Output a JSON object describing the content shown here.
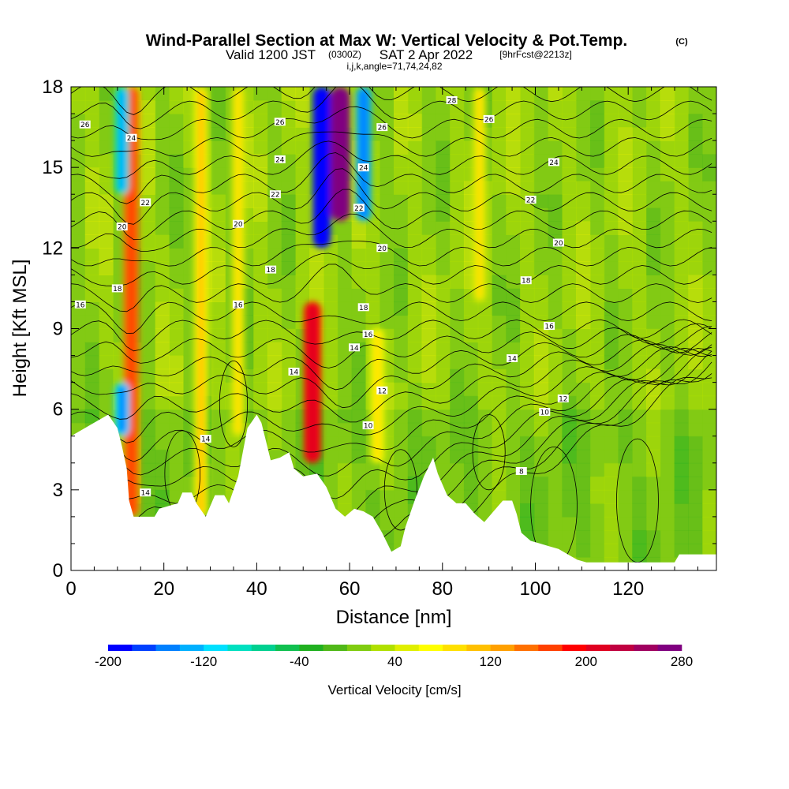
{
  "title": {
    "main": "Wind-Parallel Section at Max W: Vertical Velocity & Pot.Temp.",
    "copyright": "(C)",
    "valid_prefix": "Valid 1200 JST",
    "valid_utc": "(0300Z)",
    "valid_date": "SAT 2 Apr 2022",
    "forecast": "[9hrFcst@2213z]",
    "indices": "i,j,k,angle=71,74,24,82"
  },
  "chart_data": {
    "type": "heatmap",
    "xlabel": "Distance [nm]",
    "ylabel": "Height [Kft MSL]",
    "xlim": [
      0,
      139
    ],
    "ylim": [
      0,
      18
    ],
    "x_ticks": [
      0,
      20,
      40,
      60,
      80,
      100,
      120
    ],
    "y_ticks": [
      0,
      3,
      6,
      9,
      12,
      15,
      18
    ],
    "colorbar": {
      "label": "Vertical Velocity [cm/s]",
      "min": -200,
      "max": 280,
      "step": 20,
      "tick_labels": [
        "-200",
        "-120",
        "-40",
        "40",
        "120",
        "200",
        "280"
      ],
      "colors": [
        "#0000ff",
        "#0040ff",
        "#0080ff",
        "#00b0ff",
        "#00e0ff",
        "#00e0c0",
        "#00d090",
        "#10c050",
        "#20b020",
        "#50b818",
        "#80cc10",
        "#b0e000",
        "#e0ef00",
        "#ffff00",
        "#ffe000",
        "#ffc000",
        "#ffa000",
        "#ff7000",
        "#ff4000",
        "#ff0000",
        "#e00020",
        "#c00040",
        "#a00060",
        "#800080"
      ]
    },
    "vertical_velocity_features": [
      {
        "x": 13,
        "z_min": 2.0,
        "z_max": 18,
        "value": 140
      },
      {
        "x": 11,
        "z_min": 5.0,
        "z_max": 7.0,
        "value": -120
      },
      {
        "x": 11,
        "z_min": 14.0,
        "z_max": 18,
        "value": -100
      },
      {
        "x": 28,
        "z_min": 2.0,
        "z_max": 18,
        "value": 70
      },
      {
        "x": 36,
        "z_min": 5.0,
        "z_max": 18,
        "value": 50
      },
      {
        "x": 52,
        "z_min": 4.0,
        "z_max": 10,
        "value": 180
      },
      {
        "x": 54,
        "z_min": 12.0,
        "z_max": 18,
        "value": -200
      },
      {
        "x": 58,
        "z_min": 13.0,
        "z_max": 18,
        "value": 260
      },
      {
        "x": 63,
        "z_min": 13.0,
        "z_max": 18,
        "value": -130
      },
      {
        "x": 66,
        "z_min": 4.0,
        "z_max": 9,
        "value": 60
      },
      {
        "x": 88,
        "z_min": 10.0,
        "z_max": 18,
        "value": 50
      }
    ],
    "terrain_kft": [
      [
        0,
        5.0
      ],
      [
        4,
        5.4
      ],
      [
        8,
        5.8
      ],
      [
        10,
        5.3
      ],
      [
        11,
        4.6
      ],
      [
        12,
        3.8
      ],
      [
        12.5,
        2.6
      ],
      [
        13.5,
        2.0
      ],
      [
        18,
        2.0
      ],
      [
        19,
        2.3
      ],
      [
        23,
        2.5
      ],
      [
        24,
        2.9
      ],
      [
        26,
        2.9
      ],
      [
        27,
        2.5
      ],
      [
        29,
        2.0
      ],
      [
        31,
        2.8
      ],
      [
        33,
        2.8
      ],
      [
        34,
        2.5
      ],
      [
        36,
        3.5
      ],
      [
        37,
        4.4
      ],
      [
        38,
        5.3
      ],
      [
        40,
        5.8
      ],
      [
        41,
        5.5
      ],
      [
        42,
        4.8
      ],
      [
        43,
        4.1
      ],
      [
        45,
        4.2
      ],
      [
        47,
        4.4
      ],
      [
        48,
        3.8
      ],
      [
        50,
        3.5
      ],
      [
        53,
        3.6
      ],
      [
        55,
        3.1
      ],
      [
        57,
        2.3
      ],
      [
        59,
        2.0
      ],
      [
        61,
        2.3
      ],
      [
        63,
        2.2
      ],
      [
        65,
        2.0
      ],
      [
        67,
        1.4
      ],
      [
        69,
        0.7
      ],
      [
        71,
        0.9
      ],
      [
        72,
        1.6
      ],
      [
        74,
        2.6
      ],
      [
        76,
        3.5
      ],
      [
        78,
        4.2
      ],
      [
        79,
        3.6
      ],
      [
        81,
        2.8
      ],
      [
        83,
        2.5
      ],
      [
        85,
        2.5
      ],
      [
        87,
        2.1
      ],
      [
        89,
        1.8
      ],
      [
        91,
        2.2
      ],
      [
        93,
        2.6
      ],
      [
        95,
        2.6
      ],
      [
        96,
        2.1
      ],
      [
        97,
        1.4
      ],
      [
        99,
        1.1
      ],
      [
        101,
        1.0
      ],
      [
        103,
        0.9
      ],
      [
        105,
        0.8
      ],
      [
        107,
        0.6
      ],
      [
        109,
        0.4
      ],
      [
        111,
        0.3
      ],
      [
        130,
        0.3
      ],
      [
        131,
        0.6
      ],
      [
        139,
        0.6
      ]
    ],
    "theta_contour_labels": [
      {
        "text": "26",
        "x": 3,
        "z": 16.6
      },
      {
        "text": "24",
        "x": 13,
        "z": 16.1
      },
      {
        "text": "22",
        "x": 16,
        "z": 13.7
      },
      {
        "text": "20",
        "x": 11,
        "z": 12.8
      },
      {
        "text": "18",
        "x": 10,
        "z": 10.5
      },
      {
        "text": "16",
        "x": 2,
        "z": 9.9
      },
      {
        "text": "14",
        "x": 16,
        "z": 2.9
      },
      {
        "text": "14",
        "x": 29,
        "z": 4.9
      },
      {
        "text": "20",
        "x": 36,
        "z": 12.9
      },
      {
        "text": "16",
        "x": 36,
        "z": 9.9
      },
      {
        "text": "18",
        "x": 43,
        "z": 11.2
      },
      {
        "text": "22",
        "x": 44,
        "z": 14.0
      },
      {
        "text": "24",
        "x": 45,
        "z": 15.3
      },
      {
        "text": "26",
        "x": 45,
        "z": 16.7
      },
      {
        "text": "14",
        "x": 48,
        "z": 7.4
      },
      {
        "text": "18",
        "x": 63,
        "z": 9.8
      },
      {
        "text": "16",
        "x": 64,
        "z": 8.8
      },
      {
        "text": "14",
        "x": 61,
        "z": 8.3
      },
      {
        "text": "12",
        "x": 67,
        "z": 6.7
      },
      {
        "text": "10",
        "x": 64,
        "z": 5.4
      },
      {
        "text": "22",
        "x": 62,
        "z": 13.5
      },
      {
        "text": "24",
        "x": 63,
        "z": 15.0
      },
      {
        "text": "20",
        "x": 67,
        "z": 12.0
      },
      {
        "text": "26",
        "x": 67,
        "z": 16.5
      },
      {
        "text": "28",
        "x": 82,
        "z": 17.5
      },
      {
        "text": "26",
        "x": 90,
        "z": 16.8
      },
      {
        "text": "24",
        "x": 104,
        "z": 15.2
      },
      {
        "text": "22",
        "x": 99,
        "z": 13.8
      },
      {
        "text": "20",
        "x": 105,
        "z": 12.2
      },
      {
        "text": "18",
        "x": 98,
        "z": 10.8
      },
      {
        "text": "16",
        "x": 103,
        "z": 9.1
      },
      {
        "text": "14",
        "x": 95,
        "z": 7.9
      },
      {
        "text": "12",
        "x": 106,
        "z": 6.4
      },
      {
        "text": "10",
        "x": 102,
        "z": 5.9
      },
      {
        "text": "8",
        "x": 97,
        "z": 3.7
      }
    ]
  }
}
